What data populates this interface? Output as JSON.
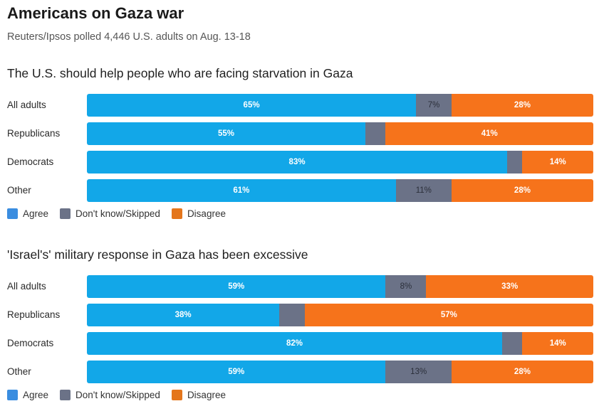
{
  "title": "Americans on Gaza war",
  "subtitle": "Reuters/Ipsos polled 4,446 U.S. adults on Aug. 13-18",
  "colors": {
    "agree": "#12a7e8",
    "dontknow": "#6b7287",
    "disagree": "#f6731b"
  },
  "chart_data": [
    {
      "type": "bar",
      "orientation": "horizontal-stacked",
      "title": "The U.S. should help people who are facing starvation in Gaza",
      "categories": [
        "All adults",
        "Republicans",
        "Democrats",
        "Other"
      ],
      "series": [
        {
          "name": "Agree",
          "values": [
            65,
            55,
            83,
            61
          ],
          "labels": [
            "65%",
            "55%",
            "83%",
            "61%"
          ]
        },
        {
          "name": "Don't know/Skipped",
          "values": [
            7,
            4,
            3,
            11
          ],
          "labels": [
            "7%",
            "",
            "",
            "11%"
          ]
        },
        {
          "name": "Disagree",
          "values": [
            28,
            41,
            14,
            28
          ],
          "labels": [
            "28%",
            "41%",
            "14%",
            "28%"
          ]
        }
      ],
      "legend": [
        "Agree",
        "Don't know/Skipped",
        "Disagree"
      ]
    },
    {
      "type": "bar",
      "orientation": "horizontal-stacked",
      "title": "'Israel's' military response in Gaza has been excessive",
      "categories": [
        "All adults",
        "Republicans",
        "Democrats",
        "Other"
      ],
      "series": [
        {
          "name": "Agree",
          "values": [
            59,
            38,
            82,
            59
          ],
          "labels": [
            "59%",
            "38%",
            "82%",
            "59%"
          ]
        },
        {
          "name": "Don't know/Skipped",
          "values": [
            8,
            5,
            4,
            13
          ],
          "labels": [
            "8%",
            "",
            "",
            "13%"
          ]
        },
        {
          "name": "Disagree",
          "values": [
            33,
            57,
            14,
            28
          ],
          "labels": [
            "33%",
            "57%",
            "14%",
            "28%"
          ]
        }
      ],
      "legend": [
        "Agree",
        "Don't know/Skipped",
        "Disagree"
      ]
    }
  ]
}
